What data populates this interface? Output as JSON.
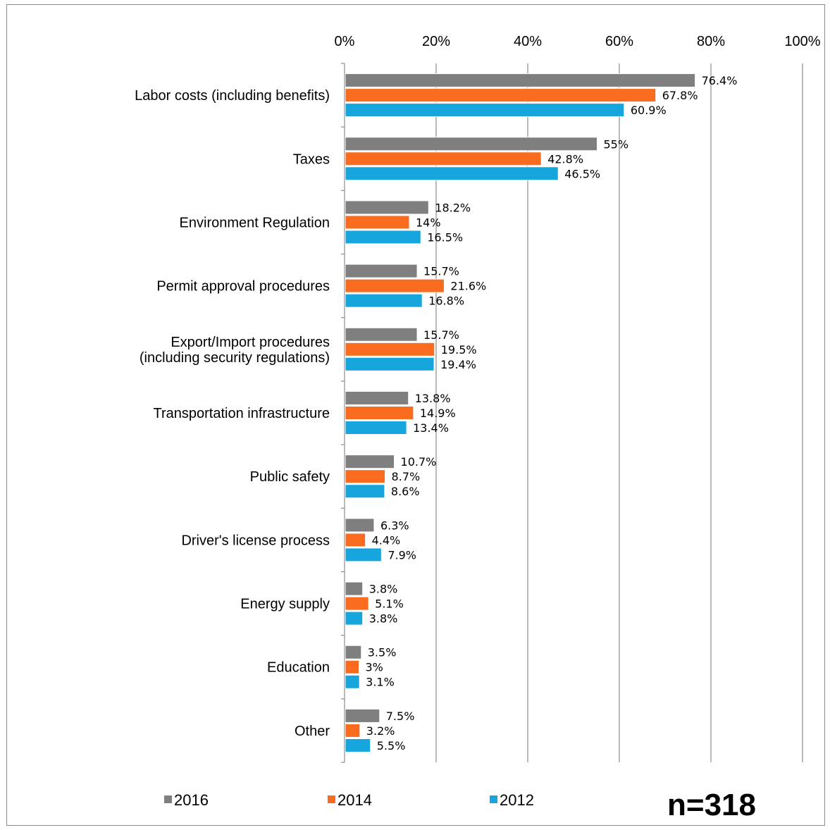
{
  "chart_data": {
    "type": "bar",
    "orientation": "horizontal",
    "title": "",
    "xlabel": "",
    "ylabel": "",
    "xlim": [
      0,
      100
    ],
    "x_ticks": [
      "0%",
      "20%",
      "40%",
      "60%",
      "80%",
      "100%"
    ],
    "grid": "vertical",
    "legend_position": "bottom",
    "note": "n=318",
    "categories": [
      "Labor costs (including benefits)",
      "Taxes",
      "Environment Regulation",
      "Permit approval procedures",
      "Export/Import procedures (including security regulations)",
      "Transportation infrastructure",
      "Public safety",
      "Driver's license process",
      "Energy supply",
      "Education",
      "Other"
    ],
    "category_lines": [
      [
        "Labor costs (including benefits)"
      ],
      [
        "Taxes"
      ],
      [
        "Environment Regulation"
      ],
      [
        "Permit approval procedures"
      ],
      [
        "Export/Import procedures",
        "(including security regulations)"
      ],
      [
        "Transportation infrastructure"
      ],
      [
        "Public safety"
      ],
      [
        "Driver's license process"
      ],
      [
        "Energy supply"
      ],
      [
        "Education"
      ],
      [
        "Other"
      ]
    ],
    "series": [
      {
        "name": "2016",
        "color": "#7f7f7f",
        "values": [
          76.4,
          55,
          18.2,
          15.7,
          15.7,
          13.8,
          10.7,
          6.3,
          3.8,
          3.5,
          7.5
        ],
        "labels": [
          "76.4%",
          "55%",
          "18.2%",
          "15.7%",
          "15.7%",
          "13.8%",
          "10.7%",
          "6.3%",
          "3.8%",
          "3.5%",
          "7.5%"
        ]
      },
      {
        "name": "2014",
        "color": "#f96b1e",
        "values": [
          67.8,
          42.8,
          14,
          21.6,
          19.5,
          14.9,
          8.7,
          4.4,
          5.1,
          3,
          3.2
        ],
        "labels": [
          "67.8%",
          "42.8%",
          "14%",
          "21.6%",
          "19.5%",
          "14.9%",
          "8.7%",
          "4.4%",
          "5.1%",
          "3%",
          "3.2%"
        ]
      },
      {
        "name": "2012",
        "color": "#17a5de",
        "values": [
          60.9,
          46.5,
          16.5,
          16.8,
          19.4,
          13.4,
          8.6,
          7.9,
          3.8,
          3.1,
          5.5
        ],
        "labels": [
          "60.9%",
          "46.5%",
          "16.5%",
          "16.8%",
          "19.4%",
          "13.4%",
          "8.6%",
          "7.9%",
          "3.8%",
          "3.1%",
          "5.5%"
        ]
      }
    ]
  }
}
